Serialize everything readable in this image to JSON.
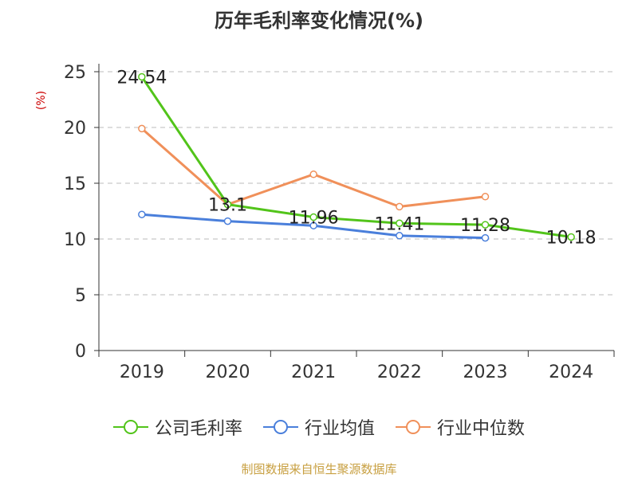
{
  "chart_data": {
    "type": "line",
    "title": "历年毛利率变化情况(%)",
    "ylabel": "(%)",
    "categories": [
      "2019",
      "2020",
      "2021",
      "2022",
      "2023",
      "2024"
    ],
    "ylim": [
      0,
      25
    ],
    "yticks": [
      0,
      5,
      10,
      15,
      20,
      25
    ],
    "grid": true,
    "legend_position": "bottom",
    "series": [
      {
        "name": "公司毛利率",
        "color": "#52c41a",
        "values": [
          24.54,
          13.1,
          11.96,
          11.41,
          11.28,
          10.18
        ],
        "labels": [
          "24.54",
          "13.1",
          "11.96",
          "11.41",
          "11.28",
          "10.18"
        ]
      },
      {
        "name": "行业均值",
        "color": "#4a7fdb",
        "values": [
          12.2,
          11.6,
          11.2,
          10.3,
          10.1,
          null
        ]
      },
      {
        "name": "行业中位数",
        "color": "#f0905a",
        "values": [
          19.9,
          13.1,
          15.8,
          12.9,
          13.8,
          null
        ]
      }
    ]
  },
  "source": "制图数据来自恒生聚源数据库"
}
